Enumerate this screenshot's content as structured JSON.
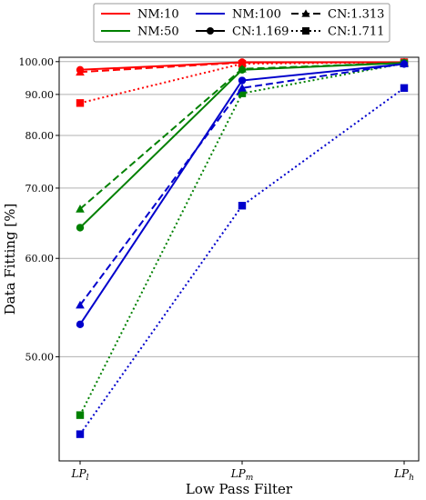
{
  "chart_data": {
    "type": "line",
    "xlabel": "Low Pass Filter",
    "ylabel": "Data Fitting [%]",
    "categories": [
      {
        "base": "LP",
        "sub": "l"
      },
      {
        "base": "LP",
        "sub": "m"
      },
      {
        "base": "LP",
        "sub": "h"
      }
    ],
    "y_scale": "reciprocal",
    "ylim": [
      42.5,
      101.5
    ],
    "yticks": [
      {
        "value": 100,
        "label": "100.00"
      },
      {
        "value": 90,
        "label": "90.00"
      },
      {
        "value": 80,
        "label": "80.00"
      },
      {
        "value": 70,
        "label": "70.00"
      },
      {
        "value": 60,
        "label": "60.00"
      },
      {
        "value": 50,
        "label": "50.00"
      }
    ],
    "grid": "horizontal",
    "legend": {
      "position": "top-center",
      "columns": [
        [
          {
            "label": "NM:10",
            "kind": "color",
            "color": "#ff0000"
          },
          {
            "label": "NM:50",
            "kind": "color",
            "color": "#008000"
          }
        ],
        [
          {
            "label": "NM:100",
            "kind": "color",
            "color": "#0000cc"
          },
          {
            "label": "CN:1.169",
            "kind": "style",
            "dash": "solid",
            "marker": "circle"
          }
        ],
        [
          {
            "label": "CN:1.313",
            "kind": "style",
            "dash": "dashed",
            "marker": "triangle"
          },
          {
            "label": "CN:1.711",
            "kind": "style",
            "dash": "dotted",
            "marker": "square"
          }
        ]
      ]
    },
    "series": [
      {
        "nm": "NM:10",
        "cn": "CN:1.169",
        "color": "#ff0000",
        "dash": "solid",
        "marker": "circle",
        "values": [
          97.3,
          99.8,
          99.8
        ]
      },
      {
        "nm": "NM:10",
        "cn": "CN:1.313",
        "color": "#ff0000",
        "dash": "dashed",
        "marker": "triangle",
        "values": [
          96.6,
          99.7,
          99.8
        ]
      },
      {
        "nm": "NM:10",
        "cn": "CN:1.711",
        "color": "#ff0000",
        "dash": "dotted",
        "marker": "square",
        "values": [
          87.7,
          99.3,
          99.8
        ]
      },
      {
        "nm": "NM:50",
        "cn": "CN:1.169",
        "color": "#008000",
        "dash": "solid",
        "marker": "circle",
        "values": [
          64.0,
          97.3,
          99.6
        ]
      },
      {
        "nm": "NM:50",
        "cn": "CN:1.313",
        "color": "#008000",
        "dash": "dashed",
        "marker": "triangle",
        "values": [
          66.7,
          97.6,
          99.6
        ]
      },
      {
        "nm": "NM:50",
        "cn": "CN:1.711",
        "color": "#008000",
        "dash": "dotted",
        "marker": "square",
        "values": [
          45.5,
          90.3,
          99.4
        ]
      },
      {
        "nm": "NM:100",
        "cn": "CN:1.169",
        "color": "#0000cc",
        "dash": "solid",
        "marker": "circle",
        "values": [
          52.9,
          94.0,
          99.2
        ]
      },
      {
        "nm": "NM:100",
        "cn": "CN:1.313",
        "color": "#0000cc",
        "dash": "dashed",
        "marker": "triangle",
        "values": [
          54.8,
          91.8,
          99.3
        ]
      },
      {
        "nm": "NM:100",
        "cn": "CN:1.711",
        "color": "#0000cc",
        "dash": "dotted",
        "marker": "square",
        "values": [
          44.2,
          67.2,
          91.8
        ]
      }
    ]
  }
}
